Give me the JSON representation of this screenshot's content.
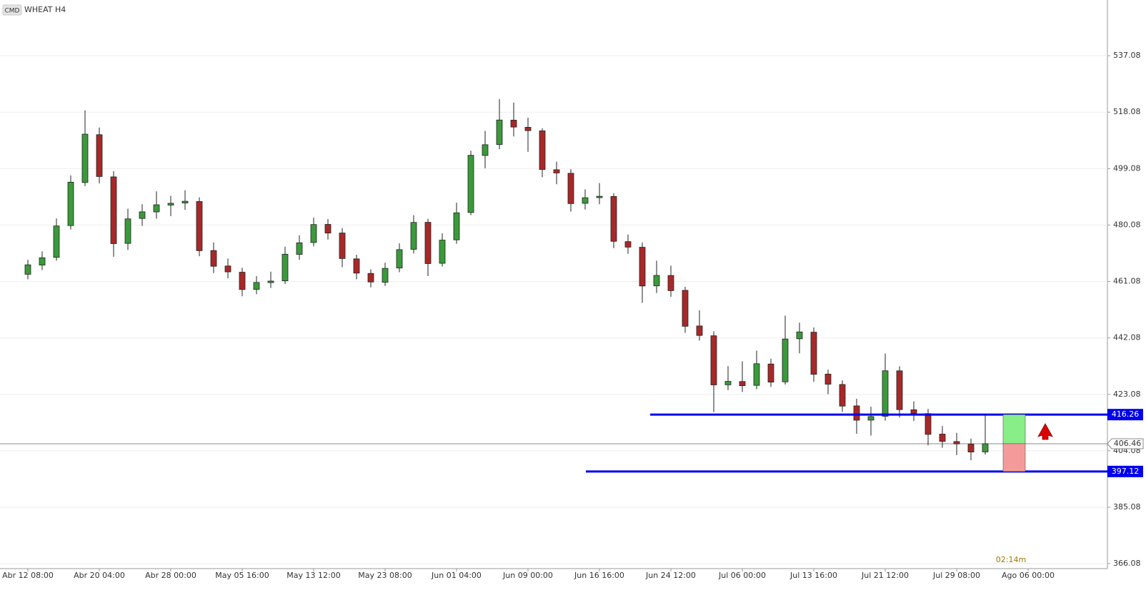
{
  "chart_data": {
    "type": "candlestick",
    "badge": "CMD",
    "title": "WHEAT H4",
    "timer": "02:14m",
    "up_color": "#3a9a3a",
    "down_color": "#a82828",
    "level_color": "#0000ee",
    "grid": true,
    "ylim": [
      555.84,
      364.42
    ],
    "yticks": [
      366.08,
      385.08,
      404.08,
      423.08,
      442.08,
      461.08,
      480.08,
      499.08,
      518.08,
      537.08
    ],
    "levels": [
      416.26,
      397.12
    ],
    "last_price": 406.46,
    "categories": [
      "Abr 12 08:00",
      null,
      null,
      null,
      null,
      "Abr 20 04:00",
      null,
      null,
      null,
      null,
      "Abr 28 00:00",
      null,
      null,
      null,
      null,
      "May 05 16:00",
      null,
      null,
      null,
      null,
      "May 13 12:00",
      null,
      null,
      null,
      null,
      "May 23 08:00",
      null,
      null,
      null,
      null,
      "Jun 01 04:00",
      null,
      null,
      null,
      null,
      "Jun 09 00:00",
      null,
      null,
      null,
      null,
      "Jun 16 16:00",
      null,
      null,
      null,
      null,
      "Jun 24 12:00",
      null,
      null,
      null,
      null,
      "Jul 06 00:00",
      null,
      null,
      null,
      null,
      "Jul 13 16:00",
      null,
      null,
      null,
      null,
      "Jul 21 12:00",
      null,
      null,
      null,
      null,
      "Jul 29 08:00",
      null,
      null,
      null,
      null,
      "Ago 06 00:00"
    ],
    "open": [
      463.5,
      466.6,
      469.2,
      479.9,
      494.4,
      510.5,
      496.3,
      473.9,
      482.3,
      484.5,
      486.8,
      487.5,
      488.0,
      471.5,
      466.3,
      464.2,
      458.4,
      460.7,
      461.3,
      470.2,
      474.2,
      480.3,
      477.4,
      468.7,
      463.8,
      460.8,
      465.6,
      471.9,
      481.0,
      467.2,
      475.1,
      484.3,
      503.5,
      507.2,
      515.4,
      513.0,
      511.8,
      498.7,
      497.5,
      487.4,
      489.3,
      489.7,
      474.5,
      472.6,
      459.6,
      463.1,
      458.1,
      446.1,
      442.8,
      426.3,
      427.4,
      426.1,
      433.3,
      427.3,
      441.8,
      444.0,
      429.9,
      426.4,
      419.2,
      414.4,
      415.7,
      431.0,
      417.9,
      416.6,
      409.7,
      407.2,
      406.3,
      403.7,
      null,
      null,
      null
    ],
    "high": [
      468.4,
      471.2,
      482.3,
      496.8,
      518.7,
      512.9,
      498.2,
      485.6,
      487.1,
      491.4,
      489.9,
      491.8,
      489.4,
      474.2,
      468.8,
      465.7,
      462.9,
      464.4,
      472.8,
      476.6,
      482.6,
      482.1,
      479.0,
      470.1,
      465.2,
      467.4,
      473.9,
      483.4,
      482.2,
      477.3,
      487.6,
      505.1,
      511.8,
      522.5,
      521.3,
      516.2,
      512.6,
      501.4,
      498.9,
      492.1,
      494.2,
      490.8,
      476.9,
      474.2,
      468.1,
      466.4,
      459.3,
      451.4,
      444.3,
      432.6,
      434.2,
      437.8,
      435.1,
      449.6,
      447.2,
      445.6,
      431.4,
      427.8,
      421.6,
      418.9,
      436.8,
      432.5,
      420.7,
      418.2,
      412.4,
      410.1,
      408.2,
      416.6,
      null,
      null,
      null
    ],
    "low": [
      461.8,
      464.9,
      468.1,
      478.6,
      493.2,
      494.1,
      469.4,
      471.7,
      479.8,
      482.2,
      483.1,
      485.2,
      469.6,
      463.9,
      462.1,
      456.1,
      456.8,
      458.9,
      460.2,
      468.4,
      472.9,
      475.2,
      465.9,
      461.8,
      459.1,
      459.6,
      464.2,
      470.5,
      462.9,
      466.1,
      473.8,
      483.4,
      499.2,
      505.6,
      509.9,
      504.7,
      496.2,
      493.8,
      484.6,
      485.3,
      487.1,
      472.3,
      470.4,
      453.9,
      457.2,
      455.9,
      443.8,
      441.2,
      417.1,
      424.5,
      423.9,
      424.8,
      425.6,
      426.4,
      436.9,
      427.3,
      423.1,
      417.2,
      409.8,
      409.2,
      414.2,
      415.3,
      414.1,
      405.9,
      405.1,
      402.6,
      400.9,
      402.8,
      null,
      null,
      null
    ],
    "close": [
      466.69,
      469.07,
      479.77,
      494.51,
      510.68,
      496.42,
      473.83,
      482.15,
      484.53,
      486.9,
      487.4,
      488.09,
      471.45,
      466.2,
      464.31,
      458.37,
      460.75,
      461.22,
      470.26,
      474.1,
      480.25,
      477.39,
      468.8,
      463.9,
      460.9,
      465.5,
      471.8,
      480.96,
      467.1,
      475.01,
      484.2,
      503.55,
      507.12,
      515.44,
      513.06,
      511.87,
      498.79,
      497.61,
      487.3,
      489.28,
      489.76,
      474.6,
      472.64,
      459.56,
      463.12,
      458.0,
      446.0,
      442.91,
      426.27,
      427.45,
      426.0,
      433.4,
      427.2,
      441.72,
      444.1,
      429.83,
      426.5,
      419.13,
      414.38,
      415.6,
      431.02,
      417.94,
      416.7,
      409.62,
      407.24,
      406.4,
      403.67,
      406.46,
      null,
      null,
      null
    ]
  }
}
